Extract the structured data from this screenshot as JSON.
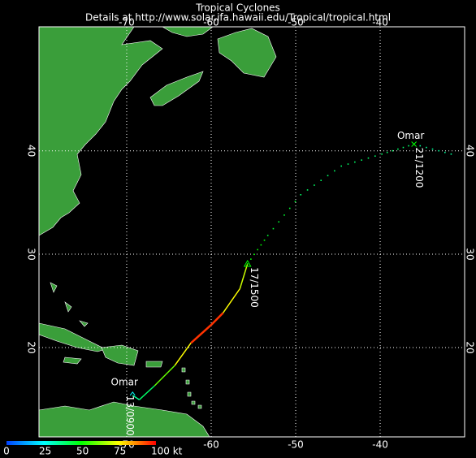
{
  "map": {
    "title": "Tropical Cyclones",
    "subtitle": "Details at http://www.solar.ifa.hawaii.edu/Tropical/tropical.html",
    "lon_ticks": [
      -70,
      -60,
      -50,
      -40
    ],
    "lat_ticks": [
      40,
      30,
      20
    ],
    "storm_name": "Omar",
    "time_labels": [
      "13/0900",
      "17/1500",
      "21/1200"
    ],
    "track": [
      {
        "lon": -69.3,
        "lat": 14.6,
        "kt": 35,
        "style": "solid"
      },
      {
        "lon": -68.5,
        "lat": 14.1,
        "kt": 40,
        "style": "solid"
      },
      {
        "lon": -66.7,
        "lat": 15.7,
        "kt": 60,
        "style": "solid"
      },
      {
        "lon": -64.3,
        "lat": 18.0,
        "kt": 75,
        "style": "solid"
      },
      {
        "lon": -62.4,
        "lat": 20.5,
        "kt": 95,
        "style": "solid"
      },
      {
        "lon": -60.0,
        "lat": 22.5,
        "kt": 95,
        "style": "solid"
      },
      {
        "lon": -58.6,
        "lat": 23.8,
        "kt": 75,
        "style": "solid"
      },
      {
        "lon": -56.6,
        "lat": 26.4,
        "kt": 70,
        "style": "solid"
      },
      {
        "lon": -55.7,
        "lat": 29.0,
        "kt": 50,
        "style": "dotted"
      },
      {
        "lon": -53.3,
        "lat": 31.9,
        "kt": 45,
        "style": "dotted"
      },
      {
        "lon": -49.4,
        "lat": 35.9,
        "kt": 40,
        "style": "dotted"
      },
      {
        "lon": -44.6,
        "lat": 38.6,
        "kt": 40,
        "style": "dotted"
      },
      {
        "lon": -39.8,
        "lat": 39.7,
        "kt": 40,
        "style": "dotted"
      },
      {
        "lon": -36.0,
        "lat": 40.6,
        "kt": 35,
        "style": "dotted"
      },
      {
        "lon": -31.6,
        "lat": 39.7,
        "kt": 35,
        "style": "dotted"
      }
    ],
    "colorbar": {
      "range": [
        0,
        100
      ],
      "ticks": [
        0,
        25,
        50,
        75,
        {
          "value": 100,
          "label": "100 kt"
        }
      ],
      "colors": [
        "#0040ff",
        "#00ffff",
        "#00ff00",
        "#ffff00",
        "#ff0000"
      ]
    }
  }
}
